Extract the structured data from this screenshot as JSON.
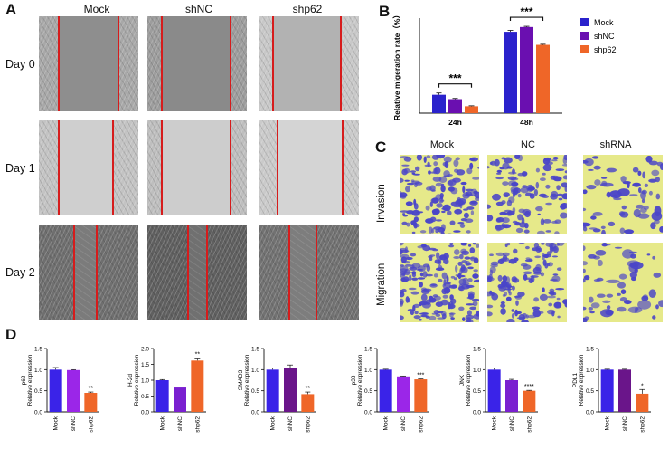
{
  "panels": {
    "A": "A",
    "B": "B",
    "C": "C",
    "D": "D"
  },
  "panel_a": {
    "columns": [
      "Mock",
      "shNC",
      "shp62"
    ],
    "rows": [
      "Day 0",
      "Day 1",
      "Day 2"
    ],
    "colors": {
      "scratch_edge": "#d61c1c"
    }
  },
  "panel_c": {
    "columns": [
      "Mock",
      "NC",
      "shRNA"
    ],
    "rows": [
      "Invasion",
      "Migration"
    ],
    "colors": {
      "cells": "#4a45c8",
      "background": "#e6e98a"
    }
  },
  "chart_data": [
    {
      "id": "B",
      "type": "bar",
      "categories": [
        "24h",
        "48h"
      ],
      "series": [
        {
          "name": "Mock",
          "values": [
            15.5,
            68.5
          ],
          "errors": [
            1.5,
            1.2
          ],
          "color": "#2a22cc"
        },
        {
          "name": "shNC",
          "values": [
            11.8,
            72.5
          ],
          "errors": [
            0.6,
            0.6
          ],
          "color": "#6a0fb0"
        },
        {
          "name": "shp62",
          "values": [
            5.8,
            57.5
          ],
          "errors": [
            0.4,
            0.5
          ],
          "color": "#ef6628"
        }
      ],
      "ylabel": "Relative migeration rate（%）",
      "ylim": [
        0,
        80
      ],
      "significance": [
        {
          "group": "24h",
          "label": "***"
        },
        {
          "group": "48h",
          "label": "***"
        }
      ],
      "legend": "right"
    },
    {
      "id": "D1",
      "type": "bar",
      "categories": [
        "Mock",
        "shNC",
        "shp62"
      ],
      "values": [
        1.0,
        0.99,
        0.45
      ],
      "errors": [
        0.05,
        0.01,
        0.02
      ],
      "colors": [
        "#3a23e8",
        "#9b26e8",
        "#ef6628"
      ],
      "annotations": [
        "",
        "",
        "**"
      ],
      "ylabel": "p62",
      "ylabel2": "Relative expression",
      "ylim": [
        0,
        1.5
      ],
      "yticks": [
        "0.0",
        "0.5",
        "1.0",
        "1.5"
      ]
    },
    {
      "id": "D2",
      "type": "bar",
      "categories": [
        "Mock",
        "shNC",
        "shp62"
      ],
      "values": [
        1.0,
        0.77,
        1.62
      ],
      "errors": [
        0.02,
        0.02,
        0.08
      ],
      "colors": [
        "#3a23e8",
        "#7a20d0",
        "#ef6628"
      ],
      "annotations": [
        "",
        "",
        "**"
      ],
      "ylabel": "H-2d",
      "ylabel2": "Relative expression",
      "ylim": [
        0,
        2.0
      ],
      "yticks": [
        "0.0",
        "0.5",
        "1.0",
        "1.5",
        "2.0"
      ]
    },
    {
      "id": "D3",
      "type": "bar",
      "categories": [
        "Mock",
        "shNC",
        "shp62"
      ],
      "values": [
        1.0,
        1.05,
        0.42
      ],
      "errors": [
        0.04,
        0.06,
        0.05
      ],
      "colors": [
        "#3a23e8",
        "#6a158a",
        "#ef6628"
      ],
      "annotations": [
        "",
        "",
        "**"
      ],
      "ylabel": "SMAD3",
      "ylabel2": "Relative expression",
      "ylim": [
        0,
        1.5
      ],
      "yticks": [
        "0.0",
        "0.5",
        "1.0",
        "1.5"
      ]
    },
    {
      "id": "D4",
      "type": "bar",
      "categories": [
        "Mock",
        "shNC",
        "shp62"
      ],
      "values": [
        1.0,
        0.84,
        0.77
      ],
      "errors": [
        0.01,
        0.01,
        0.01
      ],
      "colors": [
        "#3a23e8",
        "#9b26e8",
        "#ef6628"
      ],
      "annotations": [
        "",
        "",
        "***"
      ],
      "ylabel": "p38",
      "ylabel2": "Relative expression",
      "ylim": [
        0,
        1.5
      ],
      "yticks": [
        "0.0",
        "0.5",
        "1.0",
        "1.5"
      ]
    },
    {
      "id": "D5",
      "type": "bar",
      "categories": [
        "Mock",
        "shNC",
        "shp62"
      ],
      "values": [
        1.0,
        0.75,
        0.5
      ],
      "errors": [
        0.04,
        0.02,
        0.01
      ],
      "colors": [
        "#3a23e8",
        "#7a20d0",
        "#ef6628"
      ],
      "annotations": [
        "",
        "",
        "****"
      ],
      "ylabel": "JNK",
      "ylabel2": "Relative expression",
      "ylim": [
        0,
        1.5
      ],
      "yticks": [
        "0.0",
        "0.5",
        "1.0",
        "1.5"
      ]
    },
    {
      "id": "D6",
      "type": "bar",
      "categories": [
        "Mock",
        "shNC",
        "shp62"
      ],
      "values": [
        1.0,
        1.0,
        0.43
      ],
      "errors": [
        0.01,
        0.01,
        0.1
      ],
      "colors": [
        "#3a23e8",
        "#6a158a",
        "#ef6628"
      ],
      "annotations": [
        "",
        "",
        "*"
      ],
      "ylabel": "PDL1",
      "ylabel2": "Relative expression",
      "ylim": [
        0,
        1.5
      ],
      "yticks": [
        "0.0",
        "0.5",
        "1.0",
        "1.5"
      ]
    }
  ]
}
